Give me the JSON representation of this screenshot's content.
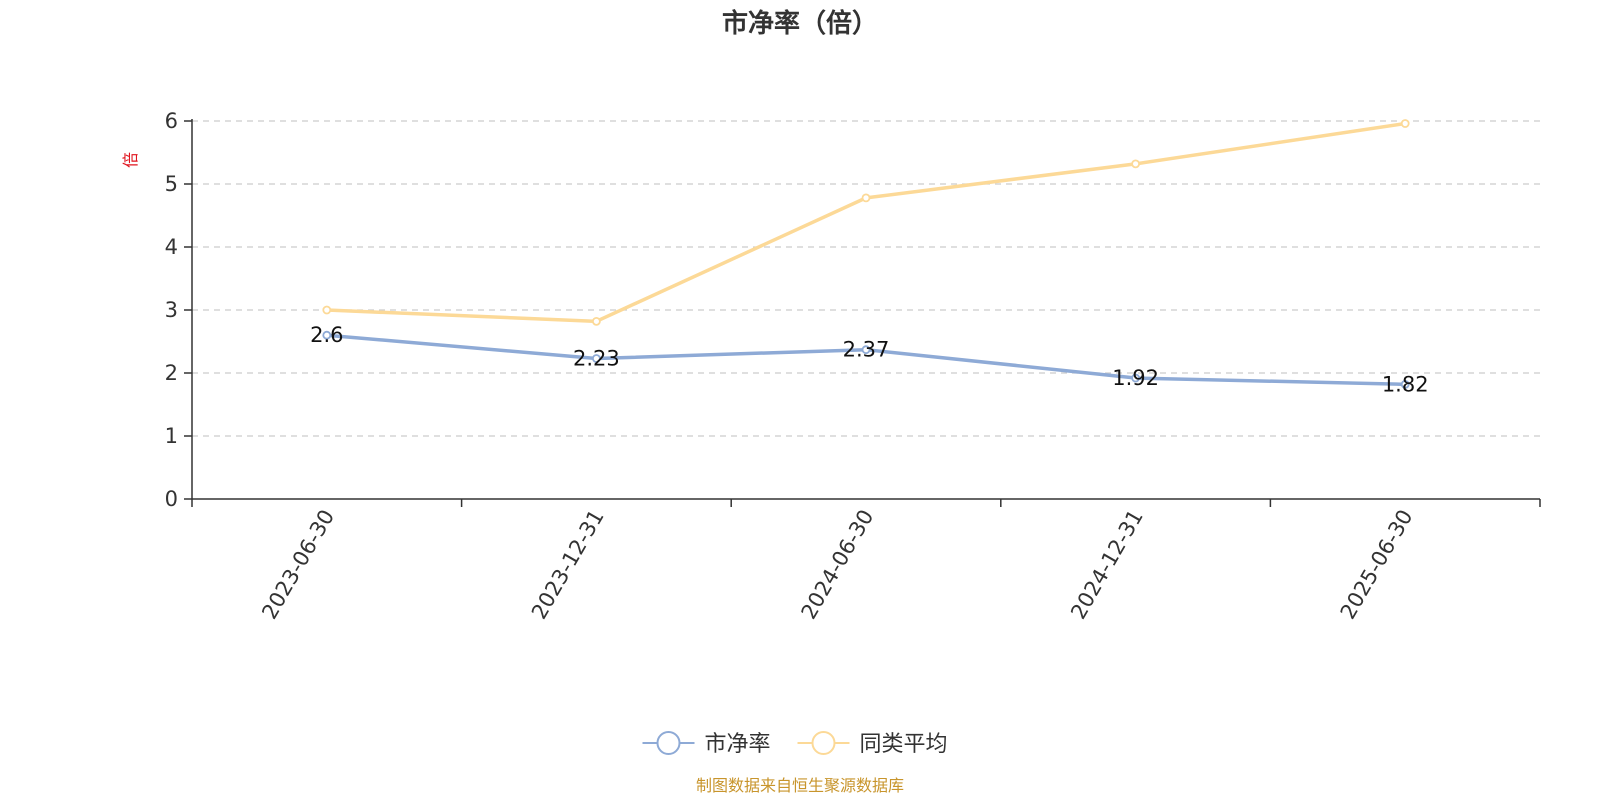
{
  "chart_data": {
    "type": "line",
    "title": "市净率（倍）",
    "ylabel": "倍",
    "ylim": [
      0,
      6
    ],
    "yticks": [
      0,
      1,
      2,
      3,
      4,
      5,
      6
    ],
    "grid": true,
    "legend_position": "bottom-center",
    "categories": [
      "2023-06-30",
      "2023-12-31",
      "2024-06-30",
      "2024-12-31",
      "2025-06-30"
    ],
    "series": [
      {
        "name": "市净率",
        "color": "#8eaad6",
        "values": [
          2.6,
          2.23,
          2.37,
          1.92,
          1.82
        ],
        "labels": [
          "2.6",
          "2.23",
          "2.37",
          "1.92",
          "1.82"
        ],
        "show_labels": true
      },
      {
        "name": "同类平均",
        "color": "#fcd997",
        "values": [
          3.0,
          2.82,
          4.78,
          5.32,
          5.96
        ],
        "show_labels": false
      }
    ]
  },
  "footer": {
    "source": "制图数据来自恒生聚源数据库"
  }
}
